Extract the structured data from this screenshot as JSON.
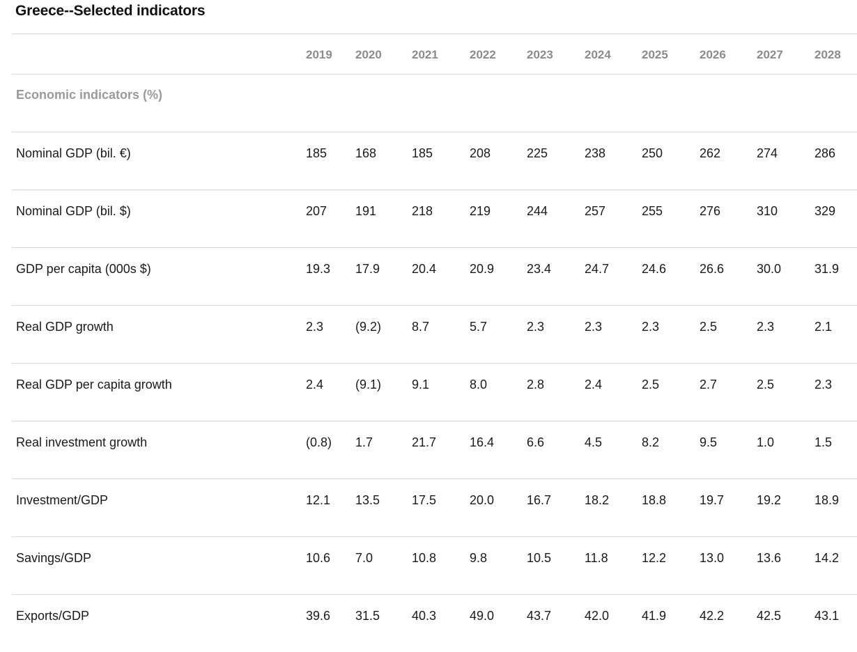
{
  "title": "Greece--Selected indicators",
  "years": [
    "2019",
    "2020",
    "2021",
    "2022",
    "2023",
    "2024",
    "2025",
    "2026",
    "2027",
    "2028"
  ],
  "section_label": "Economic indicators (%)",
  "rows": [
    {
      "label": "Nominal GDP (bil. €)",
      "values": [
        "185",
        "168",
        "185",
        "208",
        "225",
        "238",
        "250",
        "262",
        "274",
        "286"
      ]
    },
    {
      "label": "Nominal GDP (bil. $)",
      "values": [
        "207",
        "191",
        "218",
        "219",
        "244",
        "257",
        "255",
        "276",
        "310",
        "329"
      ]
    },
    {
      "label": "GDP per capita (000s $)",
      "values": [
        "19.3",
        "17.9",
        "20.4",
        "20.9",
        "23.4",
        "24.7",
        "24.6",
        "26.6",
        "30.0",
        "31.9"
      ]
    },
    {
      "label": "Real GDP growth",
      "values": [
        "2.3",
        "(9.2)",
        "8.7",
        "5.7",
        "2.3",
        "2.3",
        "2.3",
        "2.5",
        "2.3",
        "2.1"
      ]
    },
    {
      "label": "Real GDP per capita growth",
      "values": [
        "2.4",
        "(9.1)",
        "9.1",
        "8.0",
        "2.8",
        "2.4",
        "2.5",
        "2.7",
        "2.5",
        "2.3"
      ]
    },
    {
      "label": "Real investment growth",
      "values": [
        "(0.8)",
        "1.7",
        "21.7",
        "16.4",
        "6.6",
        "4.5",
        "8.2",
        "9.5",
        "1.0",
        "1.5"
      ]
    },
    {
      "label": "Investment/GDP",
      "values": [
        "12.1",
        "13.5",
        "17.5",
        "20.0",
        "16.7",
        "18.2",
        "18.8",
        "19.7",
        "19.2",
        "18.9"
      ]
    },
    {
      "label": "Savings/GDP",
      "values": [
        "10.6",
        "7.0",
        "10.8",
        "9.8",
        "10.5",
        "11.8",
        "12.2",
        "13.0",
        "13.6",
        "14.2"
      ]
    },
    {
      "label": "Exports/GDP",
      "values": [
        "39.6",
        "31.5",
        "40.3",
        "49.0",
        "43.7",
        "42.0",
        "41.9",
        "42.2",
        "42.5",
        "43.1"
      ]
    }
  ]
}
